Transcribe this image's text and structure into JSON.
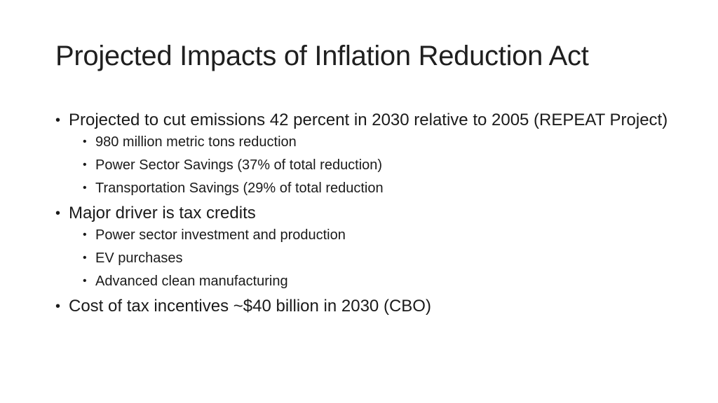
{
  "slide": {
    "title": "Projected Impacts of Inflation Reduction Act",
    "bullet_glyph": "•",
    "items": [
      {
        "text": "Projected to cut emissions 42 percent in 2030 relative to 2005 (REPEAT Project)",
        "subitems": [
          "980 million metric tons reduction",
          "Power Sector Savings (37% of total reduction)",
          "Transportation Savings (29% of total reduction"
        ]
      },
      {
        "text": "Major driver is tax credits",
        "subitems": [
          "Power sector investment and production",
          "EV purchases",
          "Advanced clean manufacturing"
        ]
      },
      {
        "text": "Cost of tax incentives ~$40 billion in 2030  (CBO)",
        "subitems": []
      }
    ]
  }
}
